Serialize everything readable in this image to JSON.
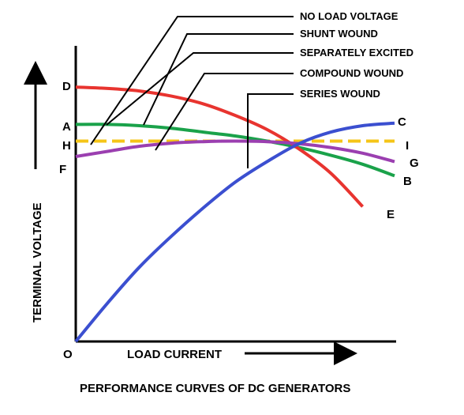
{
  "chart_data": {
    "type": "line",
    "title": "PERFORMANCE CURVES OF DC GENERATORS",
    "xlabel": "LOAD CURRENT",
    "ylabel": "TERMINAL VOLTAGE",
    "origin_label": "O",
    "grid": false,
    "series": [
      {
        "name": "NO LOAD VOLTAGE",
        "color": "#f5c518",
        "dashed": true,
        "start_label": "H",
        "end_label": "I",
        "points": [
          [
            0,
            0.78
          ],
          [
            1,
            0.78
          ]
        ]
      },
      {
        "name": "SHUNT WOUND",
        "color": "#1aa24a",
        "start_label": "A",
        "end_label": "B",
        "points": [
          [
            0,
            0.845
          ],
          [
            0.1,
            0.845
          ],
          [
            0.2,
            0.84
          ],
          [
            0.3,
            0.83
          ],
          [
            0.4,
            0.815
          ],
          [
            0.5,
            0.8
          ],
          [
            0.6,
            0.78
          ],
          [
            0.7,
            0.755
          ],
          [
            0.8,
            0.725
          ],
          [
            0.9,
            0.69
          ],
          [
            1,
            0.645
          ]
        ]
      },
      {
        "name": "SEPARATELY EXCITED",
        "color": "#e8342f",
        "start_label": "D",
        "end_label": "E",
        "points": [
          [
            0,
            0.99
          ],
          [
            0.1,
            0.985
          ],
          [
            0.2,
            0.975
          ],
          [
            0.3,
            0.955
          ],
          [
            0.4,
            0.925
          ],
          [
            0.5,
            0.88
          ],
          [
            0.6,
            0.825
          ],
          [
            0.7,
            0.75
          ],
          [
            0.8,
            0.655
          ],
          [
            0.9,
            0.525
          ]
        ]
      },
      {
        "name": "COMPOUND WOUND",
        "color": "#9b3fb0",
        "start_label": "F",
        "end_label": "G",
        "points": [
          [
            0,
            0.72
          ],
          [
            0.1,
            0.74
          ],
          [
            0.2,
            0.76
          ],
          [
            0.3,
            0.772
          ],
          [
            0.4,
            0.778
          ],
          [
            0.5,
            0.78
          ],
          [
            0.6,
            0.778
          ],
          [
            0.7,
            0.77
          ],
          [
            0.8,
            0.755
          ],
          [
            0.9,
            0.733
          ],
          [
            1,
            0.7
          ]
        ]
      },
      {
        "name": "SERIES WOUND",
        "color": "#3b4fd0",
        "start_label": "",
        "end_label": "C",
        "points": [
          [
            0,
            0
          ],
          [
            0.1,
            0.15
          ],
          [
            0.2,
            0.29
          ],
          [
            0.3,
            0.41
          ],
          [
            0.4,
            0.52
          ],
          [
            0.5,
            0.62
          ],
          [
            0.6,
            0.7
          ],
          [
            0.7,
            0.77
          ],
          [
            0.8,
            0.815
          ],
          [
            0.9,
            0.84
          ],
          [
            1,
            0.85
          ]
        ]
      }
    ]
  }
}
